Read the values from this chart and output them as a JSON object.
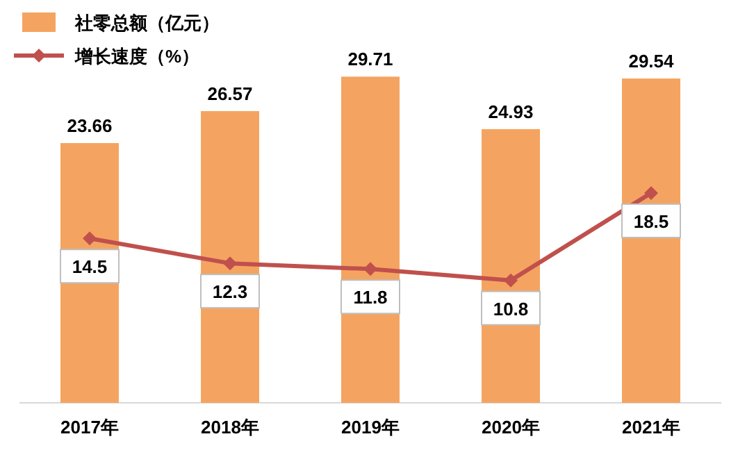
{
  "chart_data": {
    "type": "bar",
    "categories": [
      "2017年",
      "2018年",
      "2019年",
      "2020年",
      "2021年"
    ],
    "series": [
      {
        "name": "社零总额（亿元）",
        "color": "#f4a460",
        "values": [
          23.66,
          26.57,
          29.71,
          24.93,
          29.54
        ]
      },
      {
        "name": "增长速度（%）",
        "type": "line",
        "axis": "y2",
        "color": "#c0504d",
        "values": [
          14.5,
          12.3,
          11.8,
          10.8,
          18.5
        ]
      }
    ],
    "data_labels": true,
    "legend": "top left",
    "tick_labels": "x",
    "marker": "diamond",
    "line_style": "solid"
  }
}
